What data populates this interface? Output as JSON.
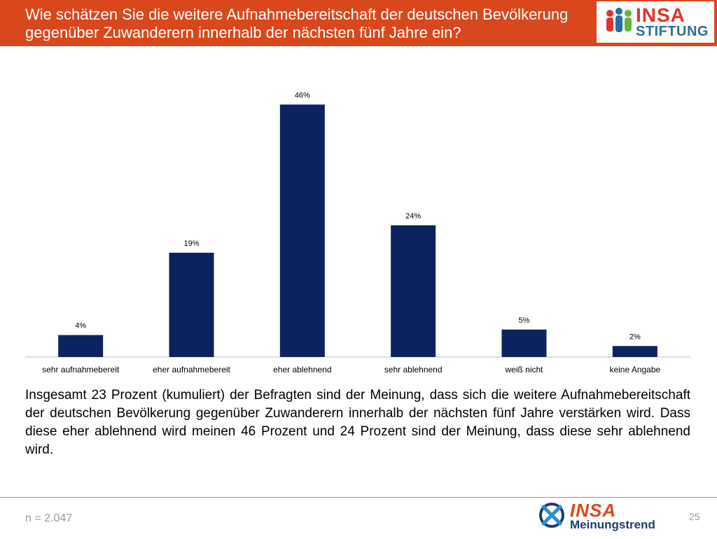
{
  "header": {
    "title": "Wie schätzen Sie die weitere Aufnahmebereitschaft der deutschen Bevölkerung\ngegenüber Zuwanderern innerhalb der nächsten fünf Jahre ein?",
    "color": "#d9481c"
  },
  "logo": {
    "line1": "INSA",
    "line2": "STIFTUNG"
  },
  "chart_data": {
    "type": "bar",
    "categories": [
      "sehr aufnahmebereit",
      "eher aufnahmebereit",
      "eher ablehnend",
      "sehr ablehnend",
      "weiß nicht",
      "keine Angabe"
    ],
    "values": [
      4,
      19,
      46,
      24,
      5,
      2
    ],
    "data_labels": [
      "4%",
      "19%",
      "46%",
      "24%",
      "5%",
      "2%"
    ],
    "unit": "%",
    "ylim": [
      0,
      50
    ],
    "grid": false,
    "legend": "none",
    "bar_color": "#0d2361",
    "title": "",
    "xlabel": "",
    "ylabel": ""
  },
  "description": "Insgesamt 23 Prozent (kumuliert) der Befragten sind der Meinung, dass sich die weitere Aufnahmebereitschaft der deutschen Bevölkerung gegenüber Zuwanderern innerhalb der nächsten fünf Jahre verstärken wird. Dass diese eher ablehnend wird meinen 46 Prozent und 24 Prozent sind der Meinung, dass diese sehr ablehnend wird.",
  "footer": {
    "sample": "n = 2.047",
    "brand_line1": "INSA",
    "brand_line2": "Meinungstrend",
    "page_number": "25"
  }
}
